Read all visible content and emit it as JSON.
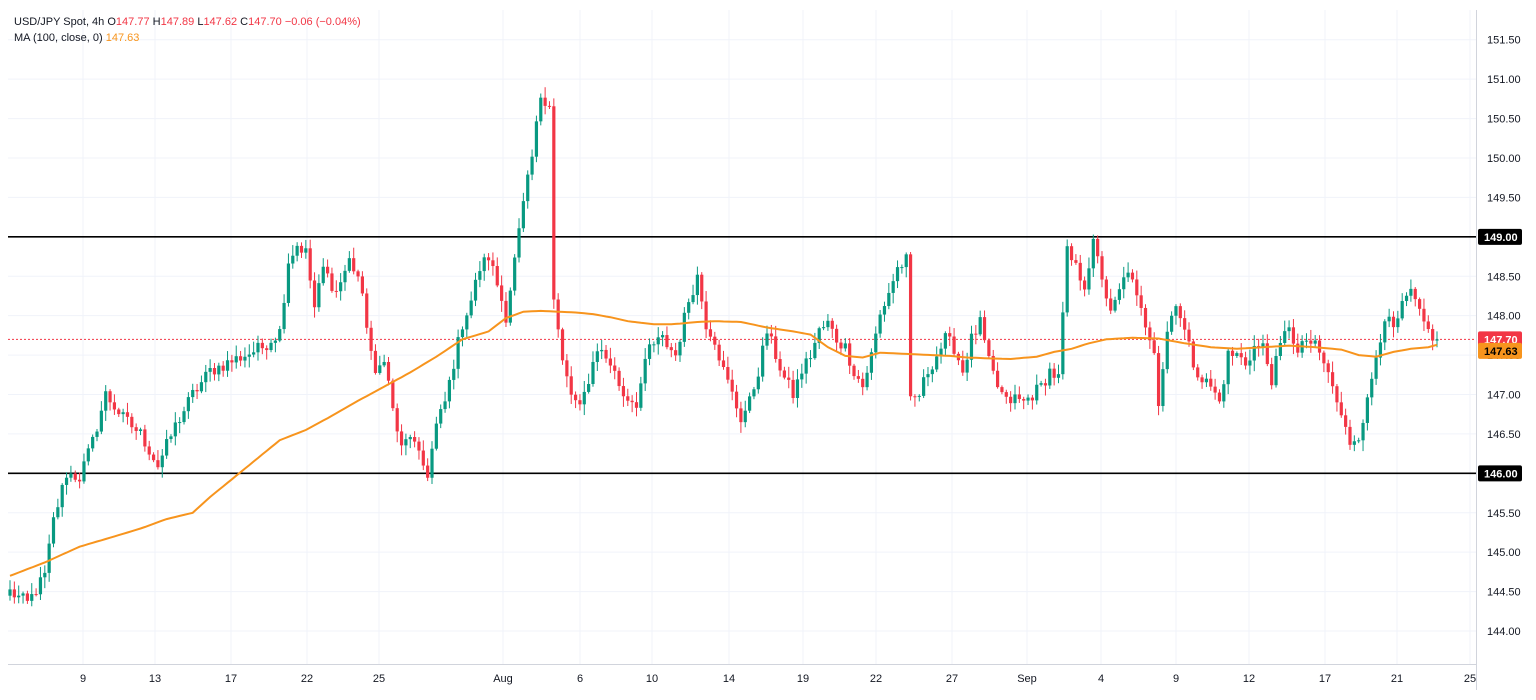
{
  "header": {
    "symbol": "USD/JPY Spot, 4h",
    "ohlc": {
      "o_label": "O",
      "o": "147.77",
      "h_label": "H",
      "h": "147.89",
      "l_label": "L",
      "l": "147.62",
      "c_label": "C",
      "c": "147.70",
      "change": "−0.06 (−0.04%)"
    },
    "ma_label": "MA (100, close, 0)",
    "ma_value": "147.63"
  },
  "colors": {
    "up": "#089981",
    "down": "#f23645",
    "ma": "#f7941d",
    "level": "#000000",
    "grid": "#f0f3fa",
    "axis": "#d1d4dc",
    "last_price": "#f23645"
  },
  "chart_data": {
    "type": "candlestick",
    "instrument": "USD/JPY Spot",
    "timeframe": "4h",
    "y_axis_ticks": [
      "151.50",
      "151.00",
      "150.50",
      "150.00",
      "149.50",
      "149.00",
      "148.50",
      "148.00",
      "147.50",
      "147.00",
      "146.50",
      "146.00",
      "145.50",
      "145.00",
      "144.50",
      "144.00"
    ],
    "y_range": [
      143.55,
      151.9
    ],
    "x_axis_ticks": [
      "9",
      "13",
      "17",
      "22",
      "25",
      "Aug",
      "6",
      "10",
      "14",
      "19",
      "22",
      "27",
      "Sep",
      "4",
      "9",
      "12",
      "17",
      "21",
      "25"
    ],
    "horizontal_levels": [
      {
        "value": 149.0,
        "label": "149.00"
      },
      {
        "value": 146.0,
        "label": "146.00"
      }
    ],
    "last_price": {
      "value": 147.7,
      "label": "147.70"
    },
    "ma_last": {
      "value": 147.63,
      "label": "147.63"
    },
    "price_anchors": [
      [
        0,
        144.5
      ],
      [
        4,
        144.35
      ],
      [
        8,
        144.7
      ],
      [
        10,
        145.4
      ],
      [
        13,
        146.0
      ],
      [
        16,
        145.95
      ],
      [
        19,
        146.4
      ],
      [
        22,
        147.0
      ],
      [
        26,
        146.7
      ],
      [
        30,
        146.5
      ],
      [
        34,
        146.1
      ],
      [
        38,
        146.6
      ],
      [
        42,
        147.0
      ],
      [
        46,
        147.3
      ],
      [
        50,
        147.4
      ],
      [
        54,
        147.5
      ],
      [
        58,
        147.6
      ],
      [
        62,
        147.8
      ],
      [
        64,
        148.7
      ],
      [
        66,
        148.9
      ],
      [
        68,
        148.8
      ],
      [
        70,
        148.1
      ],
      [
        72,
        148.6
      ],
      [
        75,
        148.3
      ],
      [
        78,
        148.7
      ],
      [
        80,
        148.5
      ],
      [
        82,
        147.9
      ],
      [
        84,
        147.2
      ],
      [
        86,
        147.5
      ],
      [
        88,
        146.8
      ],
      [
        90,
        146.3
      ],
      [
        92,
        146.5
      ],
      [
        94,
        146.2
      ],
      [
        96,
        146.0
      ],
      [
        98,
        146.6
      ],
      [
        100,
        146.9
      ],
      [
        102,
        147.4
      ],
      [
        104,
        147.9
      ],
      [
        106,
        148.2
      ],
      [
        108,
        148.6
      ],
      [
        110,
        148.75
      ],
      [
        112,
        148.4
      ],
      [
        114,
        148.0
      ],
      [
        116,
        148.7
      ],
      [
        118,
        149.4
      ],
      [
        120,
        150.0
      ],
      [
        122,
        150.8
      ],
      [
        124,
        150.7
      ],
      [
        125,
        148.2
      ],
      [
        127,
        147.4
      ],
      [
        129,
        147.0
      ],
      [
        131,
        146.8
      ],
      [
        133,
        147.2
      ],
      [
        135,
        147.6
      ],
      [
        138,
        147.4
      ],
      [
        141,
        147.0
      ],
      [
        144,
        146.9
      ],
      [
        147,
        147.6
      ],
      [
        150,
        147.7
      ],
      [
        153,
        147.5
      ],
      [
        156,
        148.2
      ],
      [
        158,
        148.5
      ],
      [
        160,
        147.9
      ],
      [
        162,
        147.7
      ],
      [
        164,
        147.3
      ],
      [
        166,
        147.0
      ],
      [
        168,
        146.7
      ],
      [
        170,
        146.9
      ],
      [
        172,
        147.3
      ],
      [
        174,
        147.8
      ],
      [
        176,
        147.5
      ],
      [
        178,
        147.2
      ],
      [
        180,
        147.0
      ],
      [
        182,
        147.3
      ],
      [
        184,
        147.5
      ],
      [
        186,
        147.8
      ],
      [
        188,
        147.9
      ],
      [
        190,
        147.7
      ],
      [
        192,
        147.6
      ],
      [
        194,
        147.3
      ],
      [
        196,
        147.1
      ],
      [
        198,
        147.5
      ],
      [
        200,
        148.0
      ],
      [
        202,
        148.3
      ],
      [
        204,
        148.6
      ],
      [
        206,
        148.7
      ],
      [
        207,
        146.9
      ],
      [
        209,
        147.0
      ],
      [
        211,
        147.3
      ],
      [
        213,
        147.5
      ],
      [
        215,
        147.7
      ],
      [
        217,
        147.6
      ],
      [
        219,
        147.3
      ],
      [
        221,
        147.7
      ],
      [
        223,
        147.9
      ],
      [
        225,
        147.4
      ],
      [
        227,
        147.1
      ],
      [
        229,
        146.9
      ],
      [
        231,
        146.95
      ],
      [
        233,
        146.9
      ],
      [
        235,
        147.0
      ],
      [
        237,
        147.1
      ],
      [
        239,
        147.3
      ],
      [
        241,
        147.2
      ],
      [
        243,
        148.8
      ],
      [
        245,
        148.6
      ],
      [
        247,
        148.4
      ],
      [
        249,
        148.9
      ],
      [
        251,
        148.5
      ],
      [
        253,
        148.0
      ],
      [
        255,
        148.3
      ],
      [
        257,
        148.6
      ],
      [
        259,
        148.2
      ],
      [
        261,
        147.9
      ],
      [
        263,
        147.6
      ],
      [
        264,
        146.9
      ],
      [
        266,
        147.8
      ],
      [
        268,
        148.2
      ],
      [
        270,
        147.8
      ],
      [
        272,
        147.4
      ],
      [
        274,
        147.2
      ],
      [
        276,
        147.1
      ],
      [
        278,
        146.9
      ],
      [
        280,
        147.5
      ],
      [
        282,
        147.5
      ],
      [
        284,
        147.4
      ],
      [
        286,
        147.6
      ],
      [
        288,
        147.6
      ],
      [
        290,
        147.2
      ],
      [
        292,
        147.6
      ],
      [
        294,
        147.9
      ],
      [
        296,
        147.5
      ],
      [
        298,
        147.7
      ],
      [
        300,
        147.6
      ],
      [
        302,
        147.4
      ],
      [
        304,
        147.1
      ],
      [
        306,
        146.7
      ],
      [
        308,
        146.4
      ],
      [
        310,
        146.5
      ],
      [
        312,
        146.9
      ],
      [
        314,
        147.5
      ],
      [
        316,
        148.0
      ],
      [
        318,
        147.8
      ],
      [
        320,
        148.1
      ],
      [
        322,
        148.3
      ],
      [
        324,
        148.0
      ],
      [
        326,
        147.8
      ],
      [
        328,
        147.7
      ]
    ],
    "ma_anchors": [
      [
        0,
        144.7
      ],
      [
        8,
        144.87
      ],
      [
        16,
        145.07
      ],
      [
        24,
        145.2
      ],
      [
        30,
        145.3
      ],
      [
        36,
        145.42
      ],
      [
        42,
        145.5
      ],
      [
        46,
        145.7
      ],
      [
        50,
        145.88
      ],
      [
        56,
        146.15
      ],
      [
        62,
        146.42
      ],
      [
        68,
        146.55
      ],
      [
        74,
        146.73
      ],
      [
        80,
        146.92
      ],
      [
        86,
        147.1
      ],
      [
        92,
        147.28
      ],
      [
        98,
        147.48
      ],
      [
        104,
        147.7
      ],
      [
        110,
        147.8
      ],
      [
        114,
        147.97
      ],
      [
        118,
        148.05
      ],
      [
        122,
        148.06
      ],
      [
        126,
        148.05
      ],
      [
        130,
        148.04
      ],
      [
        134,
        148.02
      ],
      [
        138,
        147.98
      ],
      [
        142,
        147.93
      ],
      [
        148,
        147.89
      ],
      [
        152,
        147.89
      ],
      [
        158,
        147.92
      ],
      [
        162,
        147.93
      ],
      [
        168,
        147.92
      ],
      [
        174,
        147.85
      ],
      [
        180,
        147.8
      ],
      [
        184,
        147.76
      ],
      [
        188,
        147.6
      ],
      [
        192,
        147.49
      ],
      [
        196,
        147.47
      ],
      [
        200,
        147.53
      ],
      [
        204,
        147.52
      ],
      [
        208,
        147.51
      ],
      [
        212,
        147.5
      ],
      [
        216,
        147.49
      ],
      [
        220,
        147.47
      ],
      [
        224,
        147.46
      ],
      [
        230,
        147.45
      ],
      [
        236,
        147.48
      ],
      [
        240,
        147.54
      ],
      [
        244,
        147.58
      ],
      [
        248,
        147.65
      ],
      [
        252,
        147.7
      ],
      [
        258,
        147.72
      ],
      [
        264,
        147.71
      ],
      [
        270,
        147.65
      ],
      [
        276,
        147.6
      ],
      [
        282,
        147.58
      ],
      [
        288,
        147.6
      ],
      [
        294,
        147.62
      ],
      [
        300,
        147.6
      ],
      [
        306,
        147.57
      ],
      [
        310,
        147.5
      ],
      [
        314,
        147.48
      ],
      [
        318,
        147.54
      ],
      [
        322,
        147.58
      ],
      [
        326,
        147.6
      ],
      [
        328,
        147.63
      ]
    ]
  }
}
